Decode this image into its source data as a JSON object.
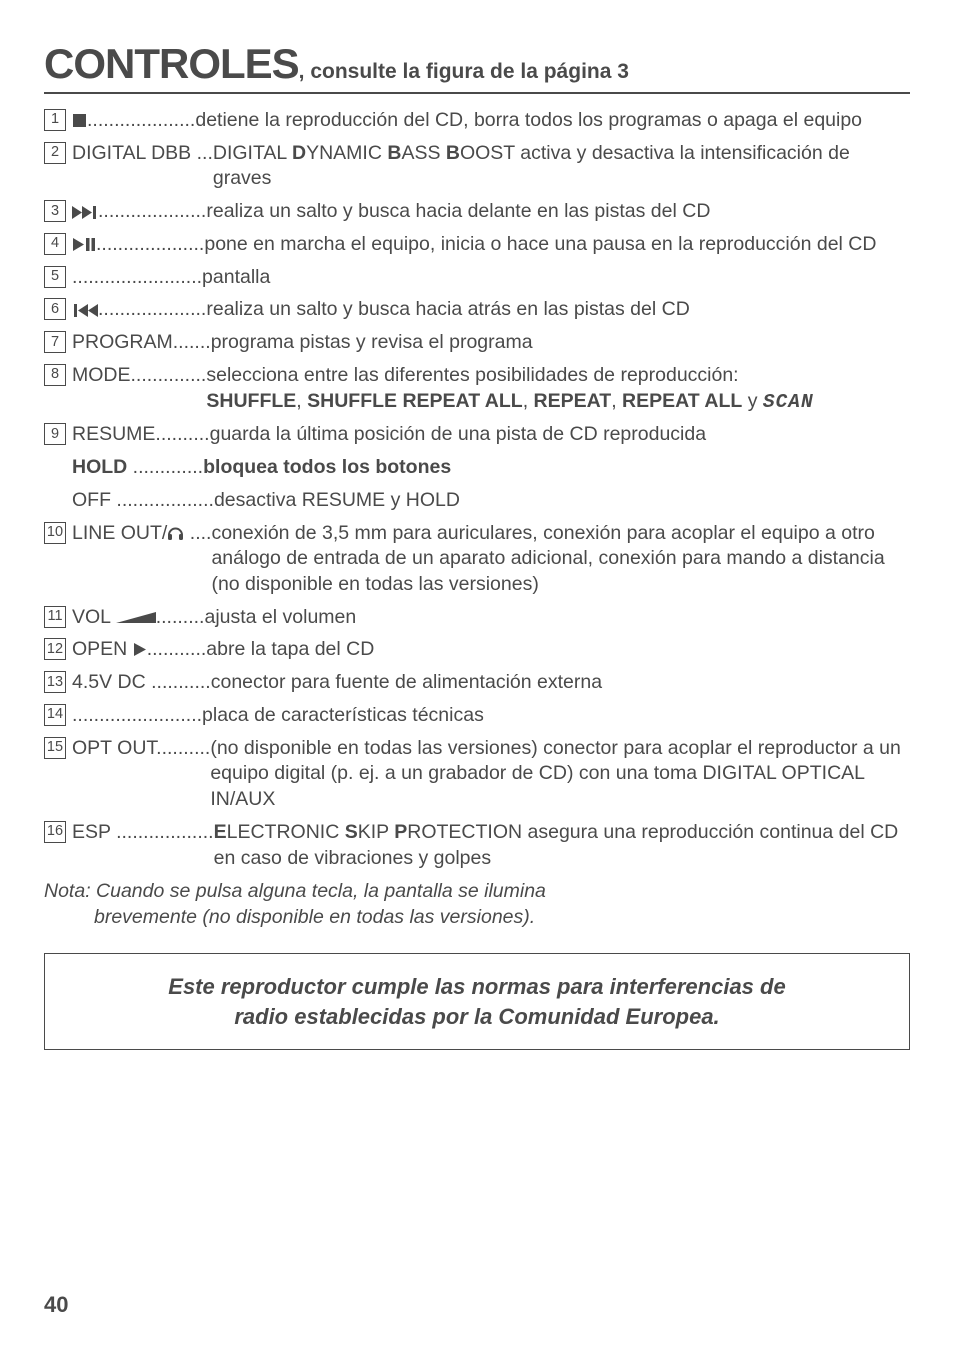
{
  "title": {
    "main": "CONTROLES",
    "sub": ", consulte la figura de la página 3"
  },
  "entries": [
    {
      "n": "1",
      "icon": "stop",
      "key_suffix": "....................",
      "desc_parts": [
        {
          "t": "detiene la reproducción del CD, borra todos los programas o apaga el equipo"
        }
      ]
    },
    {
      "n": "2",
      "key": "DIGITAL DBB ...",
      "desc_parts": [
        {
          "t": "DIGITAL "
        },
        {
          "t": "D",
          "b": true
        },
        {
          "t": "YNAMIC "
        },
        {
          "t": "B",
          "b": true
        },
        {
          "t": "ASS "
        },
        {
          "t": "B",
          "b": true
        },
        {
          "t": "OOST activa y desactiva la intensificación de graves"
        }
      ]
    },
    {
      "n": "3",
      "icon": "ffwd",
      "key_suffix": "....................",
      "desc_parts": [
        {
          "t": "realiza un salto y busca hacia delante en las pistas del CD"
        }
      ]
    },
    {
      "n": "4",
      "icon": "playpause",
      "key_suffix": "....................",
      "desc_parts": [
        {
          "t": "pone en marcha el equipo, inicia o hace una pausa en la reproducción del CD"
        }
      ]
    },
    {
      "n": "5",
      "key": "........................",
      "desc_parts": [
        {
          "t": "pantalla"
        }
      ]
    },
    {
      "n": "6",
      "icon": "rew",
      "key_suffix": "....................",
      "desc_parts": [
        {
          "t": "realiza un salto y busca hacia atrás en las pistas del CD"
        }
      ]
    },
    {
      "n": "7",
      "key": "PROGRAM.......",
      "desc_parts": [
        {
          "t": "programa pistas y revisa el programa"
        }
      ]
    },
    {
      "n": "8",
      "key": "MODE..............",
      "desc_parts": [
        {
          "t": "selecciona entre las diferentes posibilidades de reproducción: "
        },
        {
          "br": true
        },
        {
          "t": "SHUFFLE",
          "b": true
        },
        {
          "t": ", "
        },
        {
          "t": "SHUFFLE REPEAT ALL",
          "b": true
        },
        {
          "t": ", "
        },
        {
          "t": "REPEAT",
          "b": true
        },
        {
          "t": ", "
        },
        {
          "t": "REPEAT ALL",
          "b": true
        },
        {
          "t": " y "
        },
        {
          "t": "SCAN",
          "seg": true
        }
      ]
    },
    {
      "n": "9",
      "key": "RESUME..........",
      "desc_parts": [
        {
          "t": "guarda la última posición de una pista de CD reproducida"
        }
      ],
      "sub": [
        {
          "key_parts": [
            {
              "t": "HOLD",
              "b": true
            },
            {
              "t": " ............."
            }
          ],
          "desc_parts": [
            {
              "t": "bloquea todos los botones",
              "b": true
            }
          ]
        },
        {
          "key_parts": [
            {
              "t": "OFF .................."
            }
          ],
          "desc_parts": [
            {
              "t": "desactiva RESUME y HOLD"
            }
          ]
        }
      ]
    },
    {
      "n": "10",
      "key_parts": [
        {
          "t": "LINE OUT/"
        },
        {
          "icon": "headphone"
        },
        {
          "t": " ...."
        }
      ],
      "desc_parts": [
        {
          "t": "conexión de 3,5 mm para auriculares, conexión para acoplar el equipo a otro análogo de entrada de un aparato adicional, conexión para mando a distancia (no disponible en todas las versiones)"
        }
      ]
    },
    {
      "n": "11",
      "key_parts": [
        {
          "t": "VOL "
        },
        {
          "icon": "volwedge"
        },
        {
          "t": "........."
        }
      ],
      "desc_parts": [
        {
          "t": "ajusta el volumen"
        }
      ]
    },
    {
      "n": "12",
      "key_parts": [
        {
          "t": "OPEN "
        },
        {
          "icon": "play"
        },
        {
          "t": "..........."
        }
      ],
      "desc_parts": [
        {
          "t": "abre la tapa del CD"
        }
      ]
    },
    {
      "n": "13",
      "key": "4.5V DC ...........",
      "desc_parts": [
        {
          "t": "conector para fuente de alimentación externa"
        }
      ]
    },
    {
      "n": "14",
      "key": "........................",
      "desc_parts": [
        {
          "t": "placa de características técnicas"
        }
      ]
    },
    {
      "n": "15",
      "key": "OPT OUT..........",
      "desc_parts": [
        {
          "t": "(no disponible en todas las versiones) conector para acoplar el reproductor a un equipo digital (p. ej. a un grabador de CD) con una toma DIGITAL OPTICAL IN/AUX"
        }
      ]
    },
    {
      "n": "16",
      "key": "ESP ..................",
      "desc_parts": [
        {
          "t": "E",
          "b": true
        },
        {
          "t": "LECTRONIC "
        },
        {
          "t": "S",
          "b": true
        },
        {
          "t": "KIP "
        },
        {
          "t": "P",
          "b": true
        },
        {
          "t": "ROTECTION asegura una reproducción continua del CD en caso de vibraciones y golpes"
        }
      ]
    }
  ],
  "note_line1": "Nota: Cuando se pulsa alguna tecla, la pantalla se ilumina",
  "note_line2": "brevemente (no disponible en todas las versiones).",
  "callout_line1": "Este reproductor cumple las normas para interferencias de",
  "callout_line2": "radio establecidas por la Comunidad Europea.",
  "page_number": "40"
}
